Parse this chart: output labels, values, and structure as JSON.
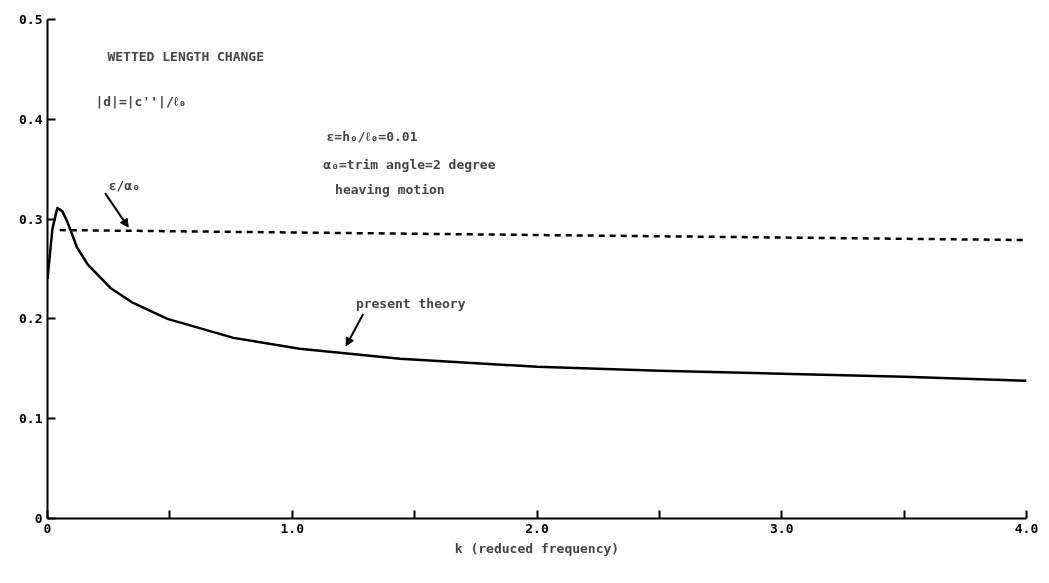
{
  "chart_data": {
    "type": "line",
    "xlabel": "k (reduced frequency)",
    "xlim": [
      0,
      4
    ],
    "ylim": [
      0,
      0.5
    ],
    "xticks": [
      0,
      {
        "value": 0.5,
        "label": null
      },
      {
        "value": 1,
        "label": "1.0"
      },
      {
        "value": 1.5,
        "label": null
      },
      {
        "value": 2,
        "label": "2.0"
      },
      {
        "value": 2.5,
        "label": null
      },
      {
        "value": 3,
        "label": "3.0"
      },
      {
        "value": 3.5,
        "label": null
      },
      {
        "value": 4,
        "label": "4.0"
      }
    ],
    "yticks": [
      0,
      0.1,
      0.2,
      0.3,
      0.4,
      0.5
    ],
    "grid": false,
    "series": [
      {
        "color": "#000000",
        "line_style": "solid",
        "x": [
          0,
          0.02,
          0.04,
          0.06,
          0.08,
          0.12,
          0.163,
          0.257,
          0.35,
          0.49,
          0.76,
          1.03,
          1.44,
          2.0,
          2.5,
          3.0,
          3.5,
          4.0
        ],
        "values": [
          0.24,
          0.29,
          0.311,
          0.308,
          0.298,
          0.272,
          0.255,
          0.231,
          0.216,
          0.2,
          0.181,
          0.17,
          0.16,
          0.152,
          0.148,
          0.145,
          0.142,
          0.138
        ]
      },
      {
        "color": "#000000",
        "line_style": "dashed",
        "x": [
          0.05,
          4.0
        ],
        "values": [
          0.289,
          0.279
        ]
      }
    ],
    "annotations": [
      "WETTED LENGTH CHANGE",
      "|d|=|c''|/ℓ₀",
      "ε=h₀/ℓ₀=0.01",
      "α₀=trim angle=2 degree",
      "heaving motion",
      {
        "text": "ε/α₀",
        "x": 0.33,
        "y": 0.289
      },
      {
        "text": "present theory",
        "x": 1.22,
        "y": 0.17
      }
    ]
  }
}
